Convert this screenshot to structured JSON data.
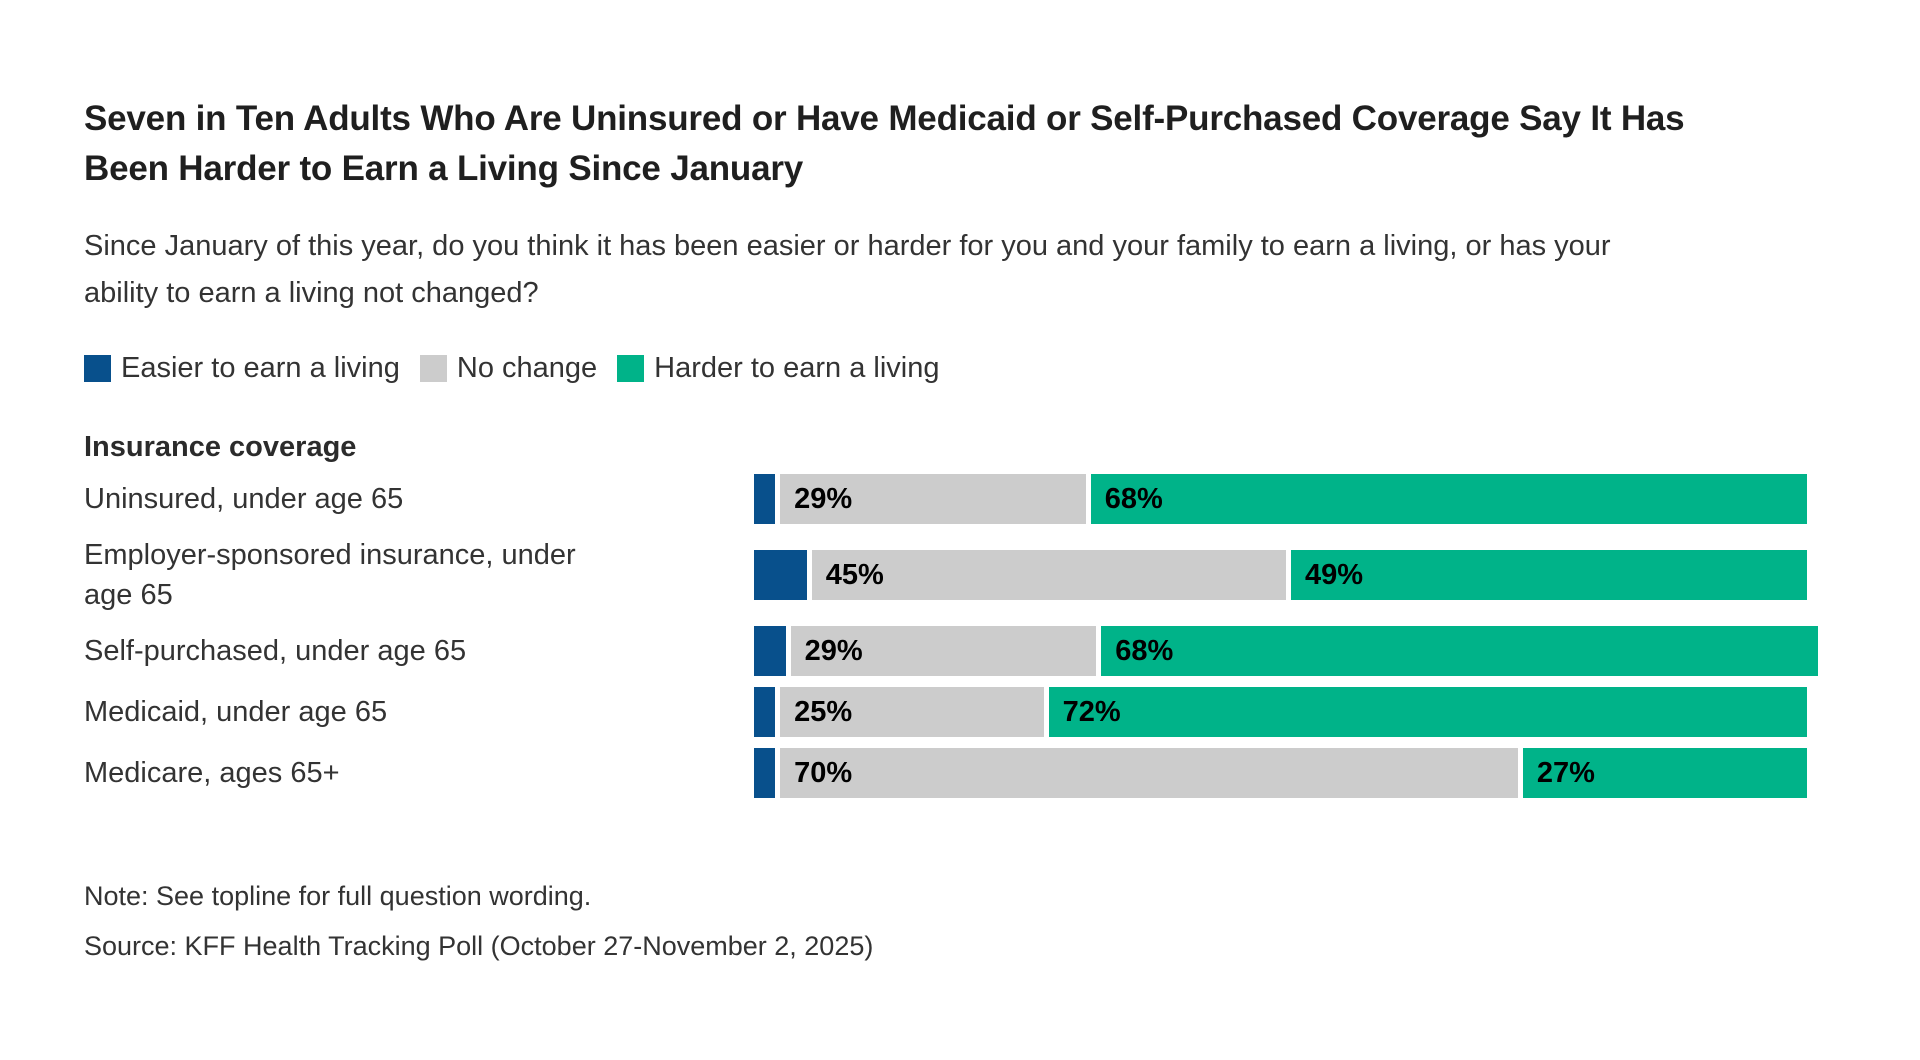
{
  "page": {
    "title": "Seven in Ten Adults Who Are Uninsured or Have Medicaid or Self-Purchased Coverage Say It Has Been Harder to Earn a Living Since January",
    "subtitle": "Since January of this year, do you think it has been easier or harder for you and your family to earn a living, or has your ability to earn a living not changed?",
    "note": "Note: See topline for full question wording.",
    "source": "Source: KFF Health Tracking Poll (October 27-November 2, 2025)"
  },
  "colors": {
    "easier_blue": "#08508c",
    "no_change_gray": "#cccccc",
    "harder_green": "#00b389",
    "value_label": "#000000"
  },
  "legend": [
    {
      "key": "easier",
      "label": "Easier to earn a living",
      "color": "#08508c"
    },
    {
      "key": "no-change",
      "label": "No change",
      "color": "#cccccc"
    },
    {
      "key": "harder",
      "label": "Harder to earn a living",
      "color": "#00b389"
    }
  ],
  "chart_data": {
    "type": "bar",
    "orientation": "horizontal",
    "stacked": true,
    "group_label": "Insurance coverage",
    "categories": [
      "Uninsured, under age 65",
      "Employer-sponsored insurance, under age 65",
      "Self-purchased, under age 65",
      "Medicaid, under age 65",
      "Medicare, ages 65+"
    ],
    "series": [
      {
        "key": "easier",
        "name": "Easier to earn a living",
        "color": "#08508c",
        "values": [
          2,
          5,
          3,
          2,
          2
        ],
        "labels_shown": false
      },
      {
        "key": "no-change",
        "name": "No change",
        "color": "#cccccc",
        "values": [
          29,
          45,
          29,
          25,
          70
        ],
        "labels_shown": true
      },
      {
        "key": "harder",
        "name": "Harder to earn a living",
        "color": "#00b389",
        "values": [
          68,
          49,
          68,
          72,
          27
        ],
        "labels_shown": true
      }
    ],
    "value_suffix": "%",
    "xlim": [
      0,
      100
    ],
    "grid": false,
    "legend_position": "top"
  }
}
